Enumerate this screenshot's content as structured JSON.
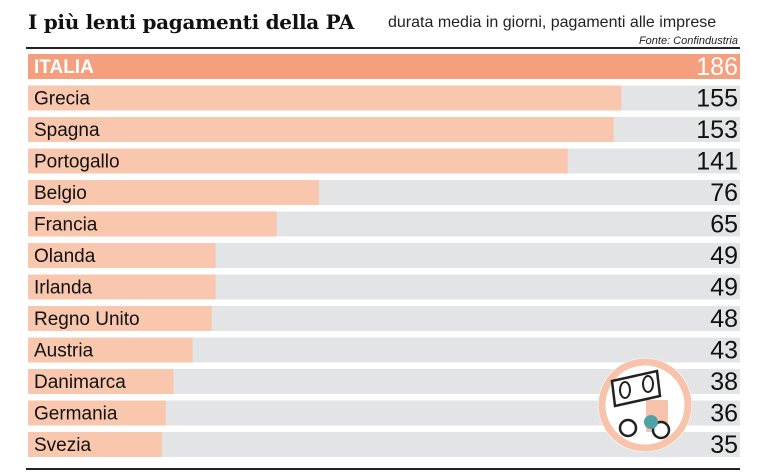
{
  "header": {
    "title": "I più lenti pagamenti della PA",
    "subtitle": "durata media in giorni, pagamenti alle imprese",
    "source": "Fonte: Confindustria"
  },
  "colors": {
    "highlight_bar": "#f4a07e",
    "bar": "#f9c7ad",
    "track": "#e3e4e6",
    "highlight_text": "#ffffff",
    "text": "#111111",
    "logo_ring": "#f7c3aa",
    "logo_dot": "#4fa3a6"
  },
  "chart_data": {
    "type": "bar",
    "orientation": "horizontal",
    "categories": [
      "ITALIA",
      "Grecia",
      "Spagna",
      "Portogallo",
      "Belgio",
      "Francia",
      "Olanda",
      "Irlanda",
      "Regno Unito",
      "Austria",
      "Danimarca",
      "Germania",
      "Svezia"
    ],
    "values": [
      186,
      155,
      153,
      141,
      76,
      65,
      49,
      49,
      48,
      43,
      38,
      36,
      35
    ],
    "highlight": "ITALIA",
    "xlim": [
      0,
      186
    ],
    "grid": false,
    "legend": "none"
  }
}
